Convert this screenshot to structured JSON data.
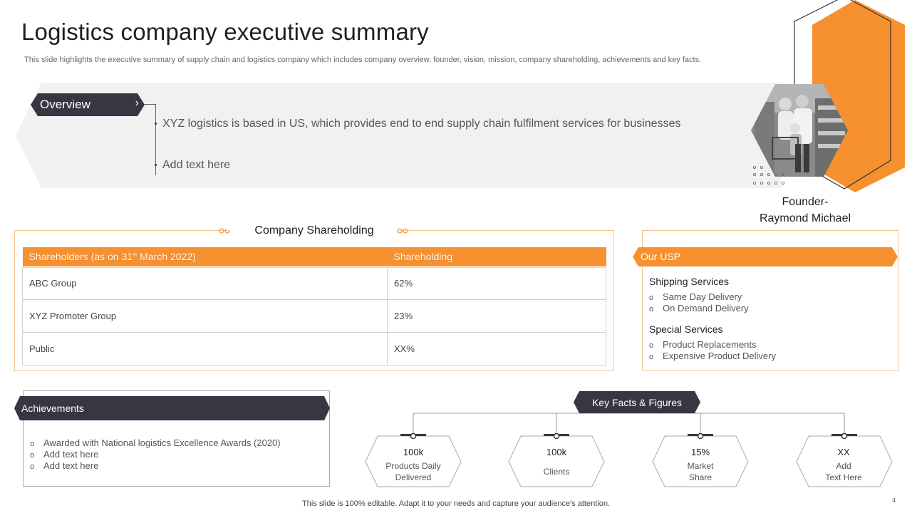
{
  "header": {
    "title": "Logistics company executive summary",
    "subtitle": "This slide highlights the executive summary of supply chain and logistics company which includes company overview, founder, vision, mission, company shareholding, achievements and key facts."
  },
  "overview": {
    "tag": "Overview",
    "chevron": "›",
    "lines": [
      "XYZ logistics is based in US, which provides end to end supply chain fulfilment services for businesses",
      "Add text here"
    ]
  },
  "founder": {
    "line1": "Founder-",
    "line2": "Raymond Michael"
  },
  "shareholding": {
    "title": "Company Shareholding",
    "header_col1_pre": "Shareholders (as on 31",
    "header_col1_sup": "st",
    "header_col1_post": " March 2022)",
    "header_col2": "Shareholding",
    "rows": [
      {
        "name": "ABC Group",
        "value": "62%"
      },
      {
        "name": "XYZ Promoter Group",
        "value": "23%"
      },
      {
        "name": "Public",
        "value": "XX%"
      }
    ]
  },
  "usp": {
    "title": "Our USP",
    "sections": [
      {
        "heading": "Shipping Services",
        "items": [
          "Same Day Delivery",
          "On Demand Delivery"
        ]
      },
      {
        "heading": "Special Services",
        "items": [
          "Product Replacements",
          "Expensive Product Delivery"
        ]
      }
    ],
    "bullet": "o"
  },
  "achievements": {
    "title": "Achievements",
    "items": [
      "Awarded with National logistics Excellence Awards (2020)",
      "Add text here",
      "Add text here"
    ]
  },
  "key_facts": {
    "title": "Key Facts & Figures",
    "facts": [
      {
        "value": "100k",
        "label1": "Products Daily",
        "label2": "Delivered"
      },
      {
        "value": "100k",
        "label1": "Clients",
        "label2": ""
      },
      {
        "value": "15%",
        "label1": "Market",
        "label2": "Share"
      },
      {
        "value": "XX",
        "label1": "Add",
        "label2": "Text Here"
      }
    ]
  },
  "footer": {
    "text": "This slide is 100% editable. Adapt it to your needs and capture your audience's attention.",
    "page": "4"
  },
  "colors": {
    "accent": "#f7902f",
    "dark": "#383642"
  }
}
